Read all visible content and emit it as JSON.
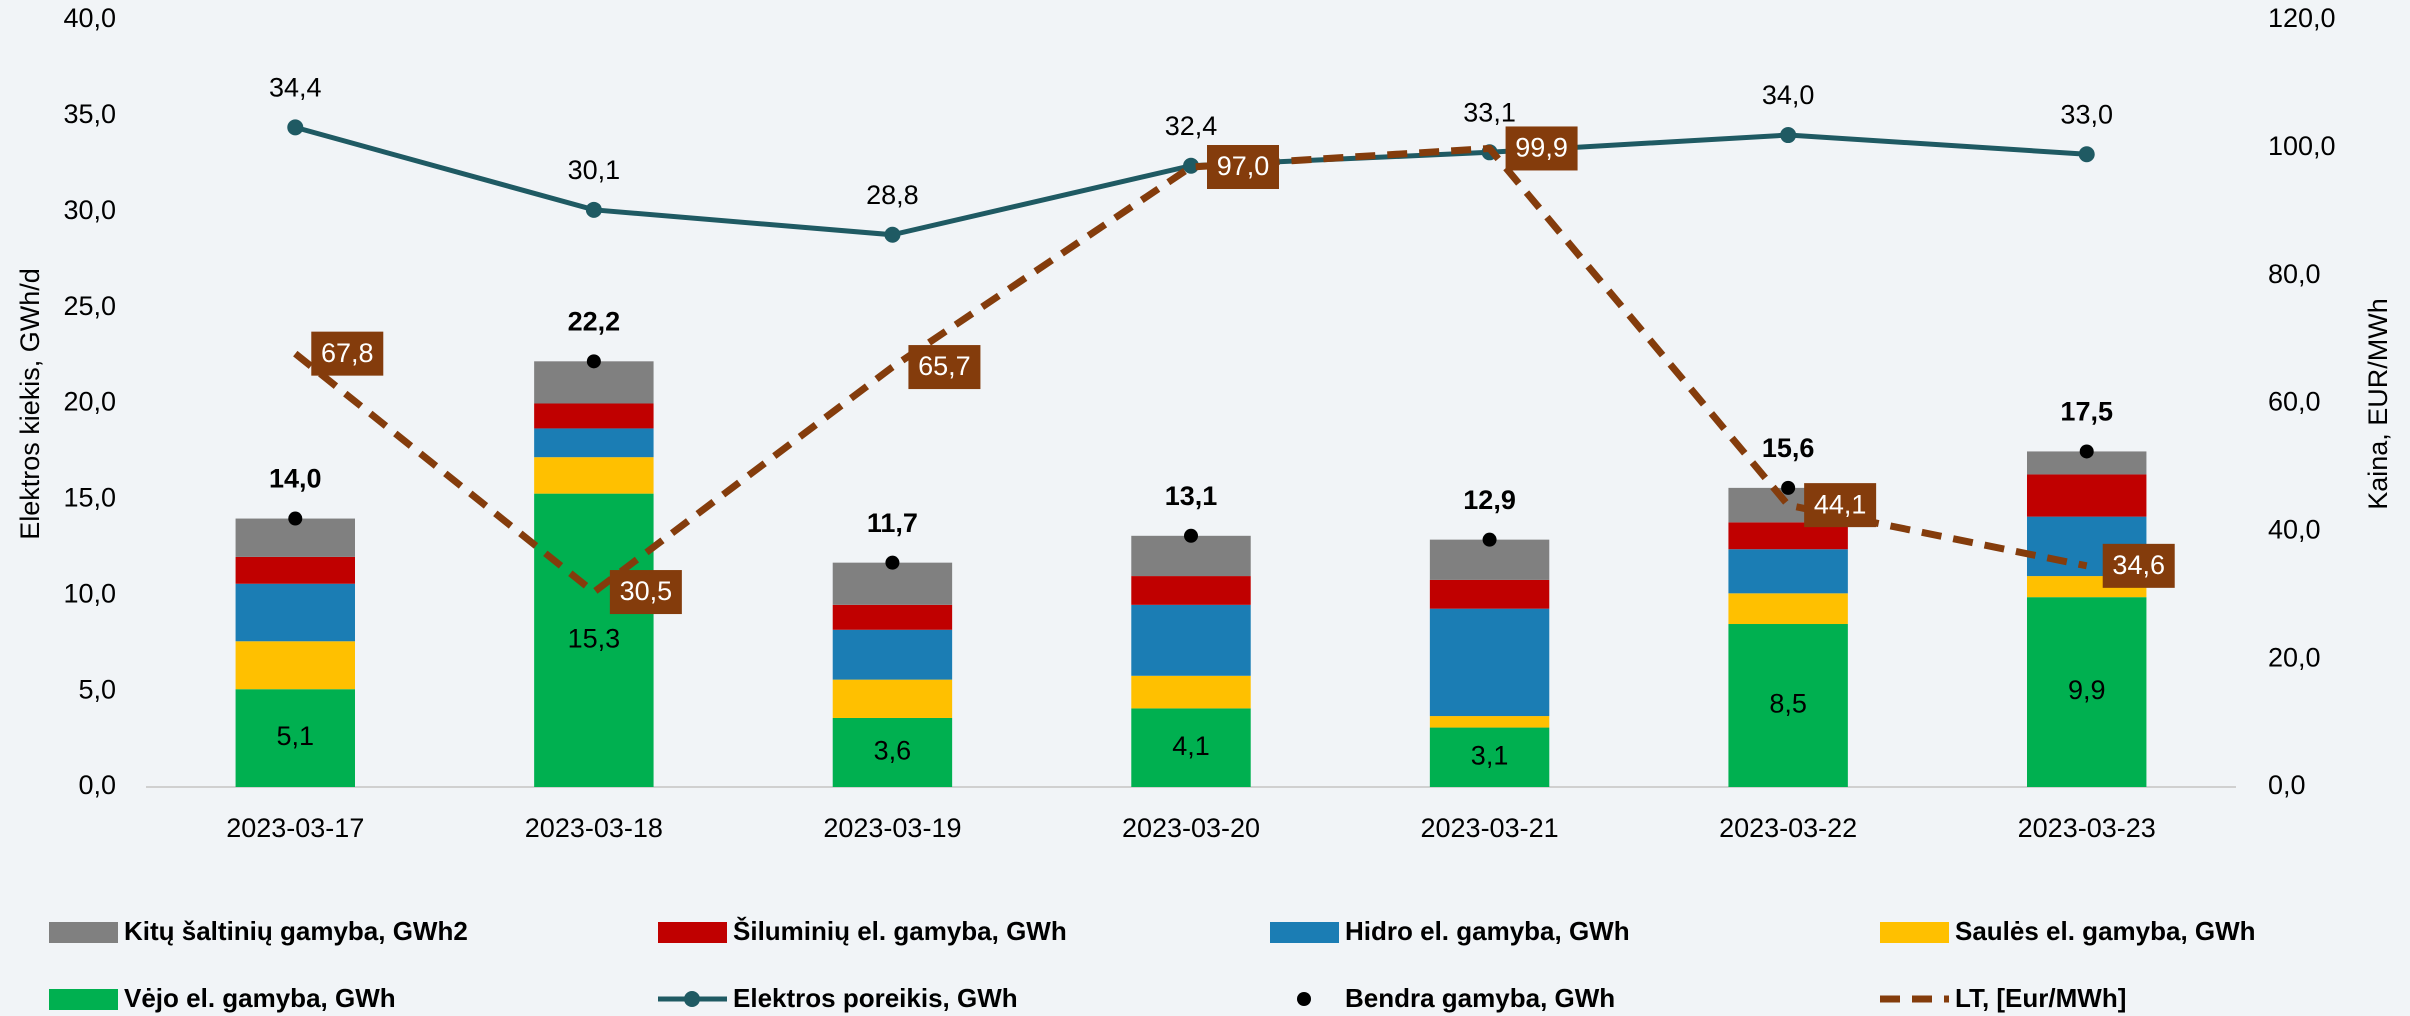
{
  "chart_data": {
    "type": "bar",
    "stacked": true,
    "categories": [
      "2023-03-17",
      "2023-03-18",
      "2023-03-19",
      "2023-03-20",
      "2023-03-21",
      "2023-03-22",
      "2023-03-23"
    ],
    "y_label": "Elektros kiekis, GWh/d",
    "y2_label": "Kaina, EUR/MWh",
    "ylim": [
      0,
      40
    ],
    "yticks": [
      {
        "value": 0,
        "label": "0,0"
      },
      {
        "value": 5,
        "label": "5,0"
      },
      {
        "value": 10,
        "label": "10,0"
      },
      {
        "value": 15,
        "label": "15,0"
      },
      {
        "value": 20,
        "label": "20,0"
      },
      {
        "value": 25,
        "label": "25,0"
      },
      {
        "value": 30,
        "label": "30,0"
      },
      {
        "value": 35,
        "label": "35,0"
      },
      {
        "value": 40,
        "label": "40,0"
      }
    ],
    "y2lim": [
      0,
      120
    ],
    "y2ticks": [
      {
        "value": 0,
        "label": "0,0"
      },
      {
        "value": 20,
        "label": "20,0"
      },
      {
        "value": 40,
        "label": "40,0"
      },
      {
        "value": 60,
        "label": "60,0"
      },
      {
        "value": 80,
        "label": "80,0"
      },
      {
        "value": 100,
        "label": "100,0"
      },
      {
        "value": 120,
        "label": "120,0"
      }
    ],
    "grid": false,
    "legend": "bottom",
    "series": [
      {
        "name": "Kitų šaltinių gamyba, GWh2",
        "type": "bar",
        "color": "#808080",
        "values": [
          2.0,
          2.2,
          2.2,
          2.1,
          2.1,
          1.8,
          1.2
        ]
      },
      {
        "name": "Šiluminių el. gamyba, GWh",
        "type": "bar",
        "color": "#c00000",
        "values": [
          1.4,
          1.3,
          1.3,
          1.5,
          1.5,
          1.4,
          2.2
        ]
      },
      {
        "name": "Hidro el. gamyba, GWh",
        "type": "bar",
        "color": "#1b7db4",
        "values": [
          3.0,
          1.5,
          2.6,
          3.7,
          5.6,
          2.3,
          3.1
        ]
      },
      {
        "name": "Saulės el. gamyba, GWh",
        "type": "bar",
        "color": "#ffc000",
        "values": [
          2.5,
          1.9,
          2.0,
          1.7,
          0.6,
          1.6,
          1.1
        ]
      },
      {
        "name": "Vėjo el. gamyba, GWh",
        "type": "bar",
        "color": "#00b050",
        "values": [
          5.1,
          15.3,
          3.6,
          4.1,
          3.1,
          8.5,
          9.9
        ],
        "value_labels": [
          "5,1",
          "15,3",
          "3,6",
          "4,1",
          "3,1",
          "8,5",
          "9,9"
        ]
      },
      {
        "name": "Elektros poreikis, GWh",
        "type": "line",
        "color": "#1f5a63",
        "values": [
          34.4,
          30.1,
          28.8,
          32.4,
          33.1,
          34.0,
          33.0
        ],
        "value_labels": [
          "34,4",
          "30,1",
          "28,8",
          "32,4",
          "33,1",
          "34,0",
          "33,0"
        ]
      },
      {
        "name": "Bendra gamyba, GWh",
        "type": "scatter",
        "color": "#000000",
        "values": [
          14.0,
          22.2,
          11.7,
          13.1,
          12.9,
          15.6,
          17.5
        ],
        "value_labels": [
          "14,0",
          "22,2",
          "11,7",
          "13,1",
          "12,9",
          "15,6",
          "17,5"
        ]
      },
      {
        "name": "LT, [Eur/MWh]",
        "type": "line",
        "dashed": true,
        "axis": "y2",
        "color": "#843c0c",
        "values": [
          67.8,
          30.5,
          65.7,
          97.0,
          99.9,
          44.1,
          34.6
        ],
        "value_labels": [
          "67,8",
          "30,5",
          "65,7",
          "97,0",
          "99,9",
          "44,1",
          "34,6"
        ]
      }
    ]
  }
}
